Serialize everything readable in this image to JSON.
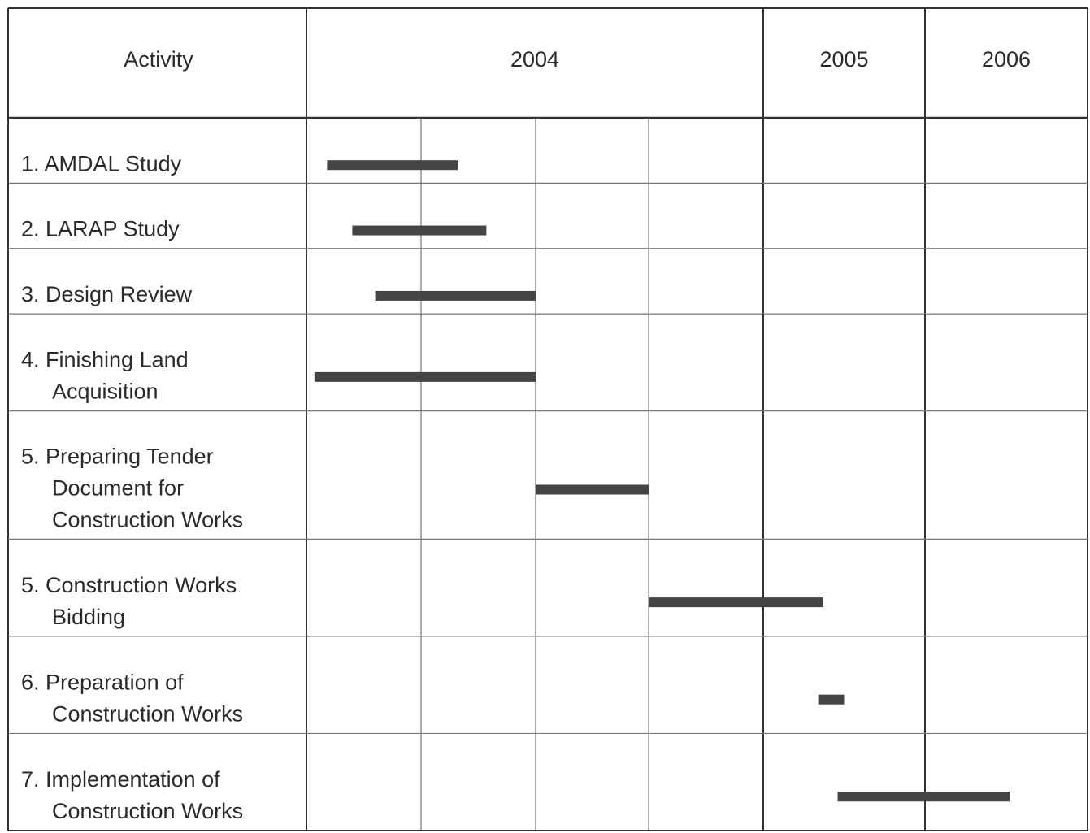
{
  "chart_data": {
    "type": "gantt",
    "header": "Activity",
    "years": [
      {
        "label": "2004",
        "start": 0,
        "end": 4
      },
      {
        "label": "2005",
        "start": 4,
        "end": 5
      },
      {
        "label": "2006",
        "start": 5,
        "end": 6
      }
    ],
    "categories": [
      [
        "1.  AMDAL Study"
      ],
      [
        "2.  LARAP Study"
      ],
      [
        "3. Design Review"
      ],
      [
        "4. Finishing Land",
        "Acquisition"
      ],
      [
        "5. Preparing Tender",
        "Document for",
        "Construction Works"
      ],
      [
        "5. Construction Works",
        "Bidding"
      ],
      [
        "6. Preparation of",
        "Construction Works"
      ],
      [
        "7. Implementation of",
        "Construction Works"
      ]
    ],
    "starts": [
      0.18,
      0.4,
      0.6,
      0.07,
      2.0,
      3.0,
      4.34,
      4.46
    ],
    "ends": [
      1.32,
      1.57,
      2.0,
      2.0,
      3.0,
      4.37,
      4.5,
      5.52
    ],
    "color": "#444444",
    "xlim": [
      0,
      6
    ],
    "xticks": [
      0,
      1,
      2,
      3,
      4,
      5,
      6
    ],
    "grid": true
  }
}
